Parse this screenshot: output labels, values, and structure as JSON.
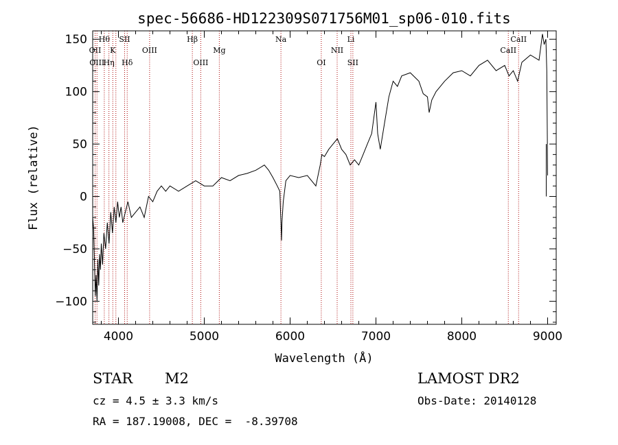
{
  "chart_data": {
    "type": "line",
    "title": "spec-56686-HD122309S071756M01_sp06-010.fits",
    "xlabel": "Wavelength (Å)",
    "ylabel": "Flux (relative)",
    "xlim": [
      3700,
      9100
    ],
    "ylim": [
      -122,
      158
    ],
    "xticks": [
      4000,
      5000,
      6000,
      7000,
      8000,
      9000
    ],
    "yticks": [
      -100,
      -50,
      0,
      50,
      100,
      150
    ],
    "grid": false,
    "line_color": "#000000",
    "marker_color": "#aa0000",
    "series": [
      {
        "x": [
          3700,
          3710,
          3720,
          3730,
          3740,
          3750,
          3760,
          3770,
          3780,
          3790,
          3800,
          3815,
          3830,
          3850,
          3870,
          3890,
          3910,
          3930,
          3950,
          3970,
          3990,
          4010,
          4030,
          4050,
          4080,
          4110,
          4150,
          4200,
          4250,
          4300,
          4350,
          4400,
          4450,
          4500,
          4550,
          4600,
          4700,
          4800,
          4900,
          5000,
          5100,
          5200,
          5300,
          5400,
          5500,
          5600,
          5700,
          5750,
          5800,
          5850,
          5880,
          5895,
          5900,
          5905,
          5920,
          5950,
          6000,
          6100,
          6200,
          6300,
          6350,
          6370,
          6400,
          6450,
          6500,
          6550,
          6600,
          6650,
          6700,
          6750,
          6800,
          6850,
          6900,
          6950,
          7000,
          7020,
          7050,
          7100,
          7150,
          7200,
          7250,
          7300,
          7400,
          7500,
          7550,
          7600,
          7620,
          7650,
          7700,
          7800,
          7900,
          8000,
          8100,
          8200,
          8300,
          8400,
          8500,
          8550,
          8600,
          8650,
          8700,
          8800,
          8900,
          8940,
          8960,
          8980,
          8990,
          9000
        ],
        "y": [
          -20,
          -30,
          -60,
          -95,
          -75,
          -100,
          -60,
          -85,
          -55,
          -70,
          -45,
          -65,
          -35,
          -50,
          -25,
          -45,
          -15,
          -35,
          -10,
          -25,
          -5,
          -20,
          -10,
          -25,
          -15,
          -5,
          -20,
          -15,
          -10,
          -20,
          0,
          -5,
          5,
          10,
          5,
          10,
          5,
          10,
          15,
          10,
          10,
          18,
          15,
          20,
          22,
          25,
          30,
          25,
          18,
          10,
          5,
          -30,
          -42,
          -25,
          -5,
          15,
          20,
          18,
          20,
          10,
          30,
          40,
          38,
          45,
          50,
          55,
          45,
          40,
          30,
          35,
          30,
          40,
          50,
          60,
          90,
          60,
          45,
          70,
          95,
          110,
          105,
          115,
          118,
          110,
          98,
          95,
          80,
          92,
          100,
          110,
          118,
          120,
          115,
          125,
          130,
          120,
          125,
          115,
          120,
          110,
          128,
          135,
          130,
          155,
          145,
          150,
          120,
          20
        ]
      }
    ],
    "line_markers": [
      {
        "x": 3835,
        "label": "Hθ",
        "row": 1
      },
      {
        "x": 3728,
        "label": "OII",
        "row": 2
      },
      {
        "x": 3750,
        "label": "OIII",
        "row": 3
      },
      {
        "x": 3889,
        "label": "Hη",
        "row": 3
      },
      {
        "x": 3934,
        "label": "K",
        "row": 2
      },
      {
        "x": 3970,
        "label": "",
        "row": 0
      },
      {
        "x": 4072,
        "label": "SII",
        "row": 1
      },
      {
        "x": 4102,
        "label": "Hδ",
        "row": 3
      },
      {
        "x": 4363,
        "label": "OIII",
        "row": 2
      },
      {
        "x": 4861,
        "label": "Hβ",
        "row": 1
      },
      {
        "x": 4959,
        "label": "OIII",
        "row": 3
      },
      {
        "x": 5175,
        "label": "Mg",
        "row": 2
      },
      {
        "x": 5893,
        "label": "Na",
        "row": 1
      },
      {
        "x": 6363,
        "label": "OI",
        "row": 3
      },
      {
        "x": 6548,
        "label": "NII",
        "row": 2
      },
      {
        "x": 6708,
        "label": "Li",
        "row": 1
      },
      {
        "x": 6731,
        "label": "SII",
        "row": 3
      },
      {
        "x": 8542,
        "label": "CaII",
        "row": 2
      },
      {
        "x": 8662,
        "label": "CaII",
        "row": 1
      }
    ]
  },
  "info": {
    "class_label": "STAR",
    "subclass": "M2",
    "survey": "LAMOST DR2",
    "cz_line": "cz = 4.5 ± 3.3 km/s",
    "obs_date": "Obs-Date: 20140128",
    "radec": "RA = 187.19008, DEC =  -8.39708"
  }
}
